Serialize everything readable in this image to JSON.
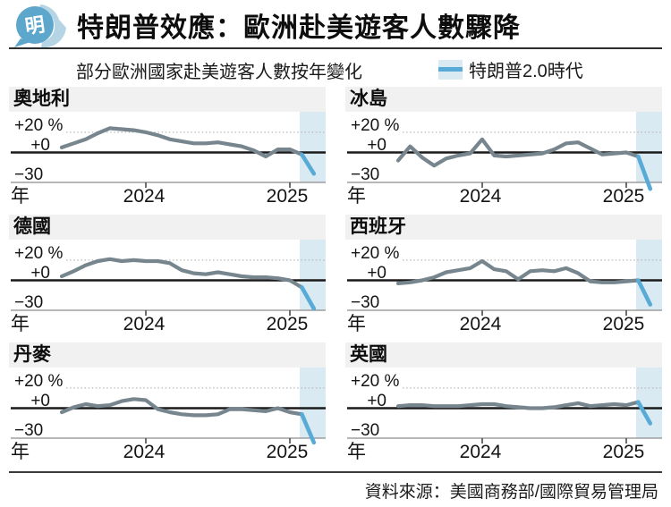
{
  "header": {
    "logo_text": "明",
    "title": "特朗普效應：歐洲赴美遊客人數驟降"
  },
  "subtitle": "部分歐洲國家赴美遊客人數按年變化",
  "legend": {
    "label": "特朗普2.0時代"
  },
  "axis": {
    "y_plus20": "+20 %",
    "y_zero": "+0",
    "y_minus30": "−30",
    "x_year": "年",
    "x_2024": "2024",
    "x_2025": "2025"
  },
  "footer": {
    "source": "資料來源：美國商務部/國際貿易管理局"
  },
  "colors": {
    "series_line": "#76858e",
    "trump_era_line": "#58abd6",
    "trump_era_region": "#daeaf3",
    "panel_title_bg": "#f1f1f1",
    "logo_main": "#5ea7cc",
    "logo_swirl": "#b5d5e5"
  },
  "chart_common": {
    "type": "line",
    "x_start": "2023-06",
    "x_end": "2025-03",
    "x_frequency": "monthly",
    "unit": "percent year-on-year change",
    "ylim": [
      -38,
      28
    ],
    "yticks": [
      20,
      0,
      -30
    ],
    "ytick_labels": [
      "+20 %",
      "+0",
      "−30"
    ],
    "xtick_months": [
      "2024-01",
      "2025-01"
    ],
    "xtick_labels": [
      "2024",
      "2025"
    ],
    "grid": "dotted line at +20, solid axis at 0, thin baseline at -30",
    "legend_position": "top-right of figure",
    "highlight": {
      "label": "特朗普2.0時代",
      "from": "2025-01-20",
      "to": "2025-03",
      "highlighted_points": [
        "2025-02",
        "2025-03"
      ]
    }
  },
  "chart_data": [
    {
      "type": "line",
      "title": "奧地利",
      "values": [
        5,
        9,
        13,
        19,
        24,
        23,
        22,
        20,
        17,
        13,
        11,
        9,
        9,
        10,
        8,
        6,
        2,
        -4,
        3,
        3,
        -2,
        -21
      ]
    },
    {
      "type": "line",
      "title": "冰島",
      "values": [
        -8,
        6,
        -5,
        -13,
        -6,
        -3,
        -1,
        13,
        -3,
        -4,
        -3,
        -2,
        -1,
        3,
        9,
        10,
        4,
        -2,
        -1,
        0,
        -4,
        -36
      ]
    },
    {
      "type": "line",
      "title": "德國",
      "values": [
        4,
        9,
        15,
        19,
        21,
        19,
        20,
        19,
        19,
        17,
        10,
        7,
        6,
        8,
        6,
        4,
        3,
        3,
        2,
        0,
        -7,
        -28
      ]
    },
    {
      "type": "line",
      "title": "西班牙",
      "values": [
        -3,
        -2,
        0,
        3,
        8,
        10,
        12,
        19,
        11,
        9,
        1,
        9,
        10,
        9,
        12,
        7,
        -1,
        -2,
        -2,
        -1,
        0,
        -24
      ]
    },
    {
      "type": "line",
      "title": "丹麥",
      "values": [
        -4,
        1,
        4,
        2,
        3,
        7,
        9,
        8,
        -1,
        -4,
        -6,
        -7,
        -7,
        -6,
        -1,
        -1,
        -2,
        -3,
        0,
        -4,
        -6,
        -34
      ]
    },
    {
      "type": "line",
      "title": "英國",
      "values": [
        2,
        3,
        3,
        2,
        2,
        2,
        3,
        4,
        4,
        2,
        1,
        0,
        0,
        1,
        3,
        5,
        2,
        3,
        4,
        3,
        6,
        -15
      ]
    }
  ]
}
